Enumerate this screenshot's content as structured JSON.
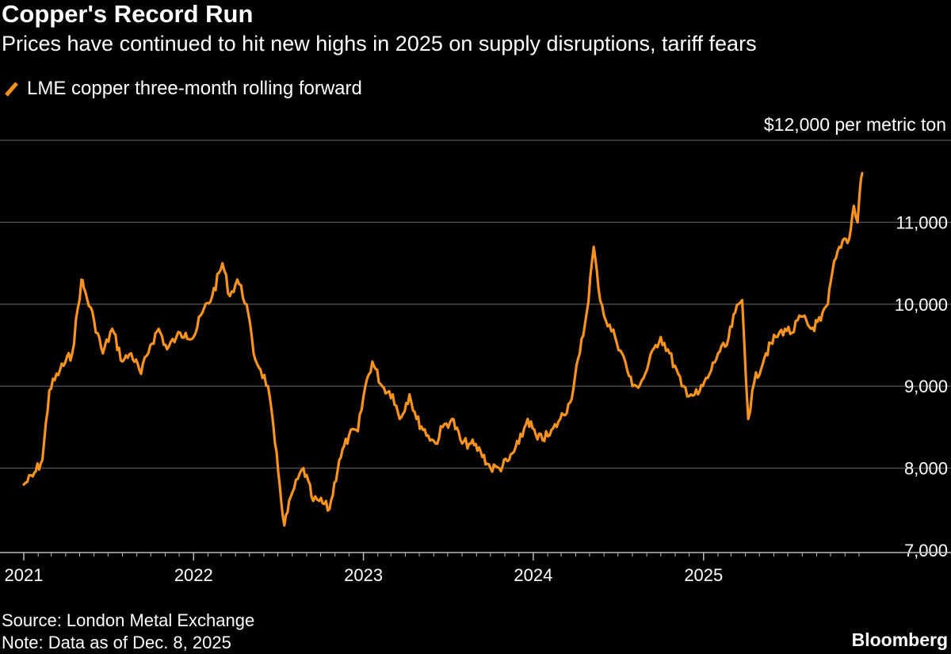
{
  "chart_data": {
    "type": "line",
    "title": "Copper's Record Run",
    "subtitle": "Prices have continued to hit new highs in 2025 on supply disruptions, tariff fears",
    "series": [
      {
        "name": "LME copper three-month rolling forward",
        "color": "#f7931e",
        "x": [
          "2021-01-01",
          "2021-01-20",
          "2021-02-10",
          "2021-02-25",
          "2021-03-20",
          "2021-04-15",
          "2021-05-05",
          "2021-05-10",
          "2021-06-01",
          "2021-06-20",
          "2021-07-10",
          "2021-08-01",
          "2021-08-20",
          "2021-09-10",
          "2021-09-30",
          "2021-10-18",
          "2021-11-05",
          "2021-11-25",
          "2021-12-15",
          "2022-01-01",
          "2022-01-20",
          "2022-02-10",
          "2022-03-04",
          "2022-03-20",
          "2022-04-05",
          "2022-04-25",
          "2022-05-10",
          "2022-05-25",
          "2022-06-10",
          "2022-06-25",
          "2022-07-05",
          "2022-07-15",
          "2022-08-01",
          "2022-08-25",
          "2022-09-15",
          "2022-09-28",
          "2022-10-20",
          "2022-11-10",
          "2022-12-01",
          "2022-12-20",
          "2023-01-05",
          "2023-01-20",
          "2023-02-10",
          "2023-03-05",
          "2023-03-20",
          "2023-04-10",
          "2023-04-25",
          "2023-05-20",
          "2023-06-05",
          "2023-06-20",
          "2023-07-10",
          "2023-08-01",
          "2023-08-20",
          "2023-09-10",
          "2023-10-01",
          "2023-10-20",
          "2023-11-10",
          "2023-12-01",
          "2023-12-20",
          "2024-01-10",
          "2024-02-05",
          "2024-02-28",
          "2024-03-20",
          "2024-04-10",
          "2024-04-25",
          "2024-05-10",
          "2024-05-20",
          "2024-06-05",
          "2024-06-25",
          "2024-07-10",
          "2024-08-01",
          "2024-08-10",
          "2024-08-25",
          "2024-09-20",
          "2024-10-01",
          "2024-10-20",
          "2024-11-15",
          "2024-12-05",
          "2024-12-20",
          "2025-01-10",
          "2025-02-01",
          "2025-02-20",
          "2025-03-10",
          "2025-03-25",
          "2025-04-07",
          "2025-04-20",
          "2025-05-15",
          "2025-06-05",
          "2025-06-25",
          "2025-07-10",
          "2025-07-30",
          "2025-08-20",
          "2025-09-10",
          "2025-09-25",
          "2025-10-05",
          "2025-10-20",
          "2025-10-30",
          "2025-11-10",
          "2025-11-20",
          "2025-11-28",
          "2025-12-03",
          "2025-12-08"
        ],
        "values": [
          7800,
          7900,
          8100,
          8950,
          9200,
          9400,
          10300,
          10200,
          9800,
          9400,
          9700,
          9300,
          9400,
          9150,
          9500,
          9700,
          9450,
          9600,
          9650,
          9600,
          9900,
          10100,
          10500,
          10100,
          10300,
          10000,
          9400,
          9200,
          9000,
          8300,
          7800,
          7300,
          7700,
          8000,
          7600,
          7600,
          7500,
          8100,
          8400,
          8450,
          9000,
          9300,
          9000,
          8900,
          8600,
          8900,
          8600,
          8400,
          8300,
          8500,
          8600,
          8300,
          8300,
          8200,
          8000,
          8000,
          8100,
          8300,
          8600,
          8350,
          8400,
          8600,
          8800,
          9400,
          9900,
          10700,
          10200,
          9800,
          9600,
          9400,
          9000,
          9000,
          9100,
          9500,
          9600,
          9400,
          9000,
          8900,
          8900,
          9100,
          9400,
          9500,
          9900,
          10050,
          8600,
          9050,
          9400,
          9600,
          9700,
          9650,
          9850,
          9700,
          9800,
          10000,
          10400,
          10700,
          10800,
          10800,
          11200,
          11000,
          11400,
          11600
        ]
      }
    ],
    "xlabel": "",
    "ylabel": "",
    "ylim": [
      6970,
      12000
    ],
    "y_ticks": [
      "$12,000 per metric ton",
      "11,000",
      "10,000",
      "9,000",
      "8,000",
      "7,000"
    ],
    "x_ticks": [
      "2021",
      "2022",
      "2023",
      "2024",
      "2025"
    ],
    "grid": true,
    "legend": "top-left"
  },
  "footer": {
    "source": "Source: London Metal Exchange",
    "note": "Note: Data as of Dec. 8, 2025",
    "brand": "Bloomberg"
  }
}
